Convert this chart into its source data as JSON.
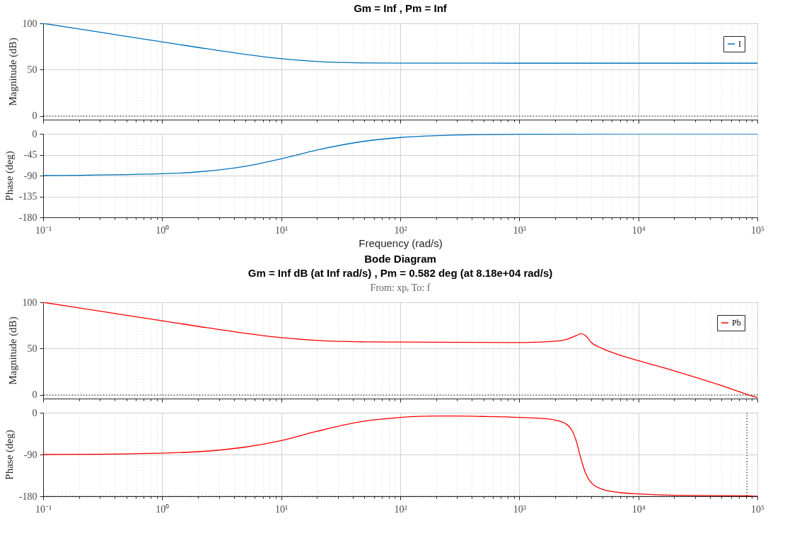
{
  "chart_data": [
    {
      "type": "line",
      "title": "Gm = Inf ,  Pm = Inf",
      "ylabel": "Magnitude (dB)",
      "x": [
        0.1,
        0.2,
        0.5,
        1,
        2,
        5,
        10,
        20,
        50,
        100,
        1000,
        10000,
        100000
      ],
      "series": [
        {
          "name": "I",
          "color": "#0072bd",
          "values": [
            100,
            94,
            86,
            80,
            74,
            66.5,
            61.8,
            58.8,
            57.3,
            57.1,
            57,
            57,
            57
          ]
        }
      ],
      "xlim": [
        0.1,
        100000
      ],
      "ylim": [
        -4,
        100
      ],
      "yticks": [
        0,
        50,
        100
      ],
      "xticks": [
        {
          "value": 0.1,
          "label": null
        },
        {
          "value": 1,
          "label": null
        },
        {
          "value": 10,
          "label": null
        },
        {
          "value": 100,
          "label": null
        },
        {
          "value": 1000,
          "label": null
        },
        {
          "value": 10000,
          "label": null
        },
        {
          "value": 100000,
          "label": null
        }
      ],
      "ref_lines": [
        {
          "axis": "y",
          "value": 0,
          "color": "#000000",
          "line_style": "dotted"
        }
      ],
      "log": "x",
      "grid": true,
      "legend": "top right",
      "tick_labels": "y"
    },
    {
      "type": "line",
      "xlabel": "Frequency  (rad/s)",
      "ylabel": "Phase (deg)",
      "x": [
        0.1,
        1,
        2,
        5,
        10,
        20,
        50,
        100,
        200,
        1000,
        10000,
        100000
      ],
      "series": [
        {
          "color": "#0072bd",
          "values": [
            -90,
            -86,
            -82,
            -70,
            -54,
            -35,
            -16,
            -8,
            -4,
            -1,
            0,
            0
          ]
        }
      ],
      "xlim": [
        0.1,
        100000
      ],
      "ylim": [
        -180,
        0
      ],
      "yticks": [
        0,
        -45,
        -90,
        -135,
        -180
      ],
      "xticks": [
        {
          "value": 0.1,
          "label": "10⁻¹"
        },
        {
          "value": 1,
          "label": "10⁰"
        },
        {
          "value": 10,
          "label": "10¹"
        },
        {
          "value": 100,
          "label": "10²"
        },
        {
          "value": 1000,
          "label": "10³"
        },
        {
          "value": 10000,
          "label": "10⁴"
        },
        {
          "value": 100000,
          "label": "10⁵"
        }
      ],
      "log": "x",
      "grid": true
    },
    {
      "type": "line",
      "title": "Bode Diagram",
      "subtitle": "Gm = Inf dB (at Inf rad/s) ,  Pm = 0.582 deg (at 8.18e+04 rad/s)",
      "annotations": [
        "From: xpᵣ  To: f"
      ],
      "ylabel": "Magnitude (dB)",
      "x": [
        0.1,
        0.2,
        0.5,
        1,
        2,
        5,
        10,
        20,
        50,
        100,
        1000,
        2000,
        2500,
        3000,
        3300,
        3600,
        4000,
        5000,
        7000,
        10000,
        20000,
        50000,
        81800,
        100000
      ],
      "series": [
        {
          "name": "Pb",
          "color": "#ff0000",
          "values": [
            100,
            94,
            86,
            80,
            74,
            66.5,
            61.8,
            58.8,
            57.3,
            57.1,
            56.5,
            58,
            60,
            64,
            66,
            64,
            57,
            50,
            43,
            37,
            26,
            10,
            0.5,
            -3
          ]
        }
      ],
      "xlim": [
        0.1,
        100000
      ],
      "ylim": [
        -4,
        100
      ],
      "yticks": [
        0,
        50,
        100
      ],
      "xticks": [
        {
          "value": 0.1,
          "label": null
        },
        {
          "value": 1,
          "label": null
        },
        {
          "value": 10,
          "label": null
        },
        {
          "value": 100,
          "label": null
        },
        {
          "value": 1000,
          "label": null
        },
        {
          "value": 10000,
          "label": null
        },
        {
          "value": 100000,
          "label": null
        }
      ],
      "ref_lines": [
        {
          "axis": "y",
          "value": 0,
          "color": "#000000",
          "line_style": "dotted"
        }
      ],
      "log": "x",
      "grid": true,
      "legend": "top right",
      "tick_labels": "y"
    },
    {
      "type": "line",
      "ylabel": "Phase (deg)",
      "x": [
        0.1,
        1,
        5,
        10,
        20,
        50,
        100,
        200,
        300,
        500,
        1000,
        1500,
        2000,
        2500,
        2800,
        3000,
        3300,
        3600,
        4000,
        5000,
        7000,
        10000,
        20000,
        81800,
        100000
      ],
      "series": [
        {
          "color": "#ff0000",
          "values": [
            -90,
            -87,
            -74,
            -60,
            -40,
            -18,
            -10,
            -7,
            -7,
            -8,
            -10,
            -12,
            -16,
            -25,
            -40,
            -60,
            -100,
            -130,
            -150,
            -165,
            -172,
            -175,
            -178,
            -179,
            -180
          ]
        }
      ],
      "xlim": [
        0.1,
        100000
      ],
      "ylim": [
        -180,
        0
      ],
      "yticks": [
        0,
        -90,
        -180
      ],
      "xticks": [
        {
          "value": 0.1,
          "label": "10⁻¹"
        },
        {
          "value": 1,
          "label": "10⁰"
        },
        {
          "value": 10,
          "label": "10¹"
        },
        {
          "value": 100,
          "label": "10²"
        },
        {
          "value": 1000,
          "label": "10³"
        },
        {
          "value": 10000,
          "label": "10⁴"
        },
        {
          "value": 100000,
          "label": "10⁵"
        }
      ],
      "ref_lines": [
        {
          "axis": "y",
          "value": -180,
          "color": "#000000",
          "line_style": "dotted"
        },
        {
          "axis": "x",
          "value": 81800,
          "color": "#000000",
          "line_style": "dotted"
        }
      ],
      "log": "x",
      "grid": true
    }
  ]
}
